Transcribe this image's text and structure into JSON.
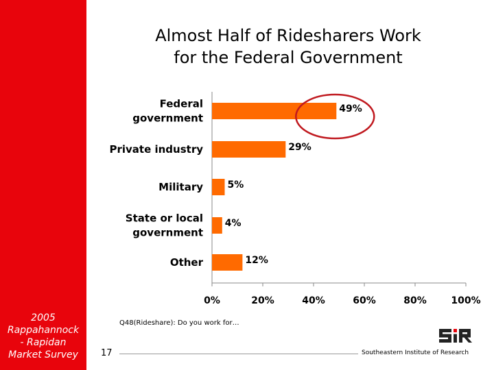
{
  "slide": {
    "title_line1": "Almost Half of Ridesharers Work",
    "title_line2": "for the Federal Government",
    "survey_caption": [
      "2005",
      "Rappahannock",
      "- Rapidan",
      "Market Survey"
    ],
    "footnote": "Q48(Rideshare): Do you work for…",
    "page_number": "17",
    "org_name": "Southeastern Institute of Research",
    "logo_text": "SIR"
  },
  "colors": {
    "sidebar": "#e8040c",
    "bar": "#ff6a00",
    "highlight_circle": "#c0191f",
    "axis": "#888888"
  },
  "chart_data": {
    "type": "bar",
    "orientation": "horizontal",
    "categories": [
      [
        "Federal",
        "government"
      ],
      [
        "Private industry"
      ],
      [
        "Military"
      ],
      [
        "State or local",
        "government"
      ],
      [
        "Other"
      ]
    ],
    "values": [
      49,
      29,
      5,
      4,
      12
    ],
    "value_labels": [
      "49%",
      "29%",
      "5%",
      "4%",
      "12%"
    ],
    "xlim": [
      0,
      100
    ],
    "x_ticks": [
      0,
      20,
      40,
      60,
      80,
      100
    ],
    "x_tick_labels": [
      "0%",
      "20%",
      "40%",
      "60%",
      "80%",
      "100%"
    ],
    "grid": false,
    "highlighted_category_index": 0
  }
}
